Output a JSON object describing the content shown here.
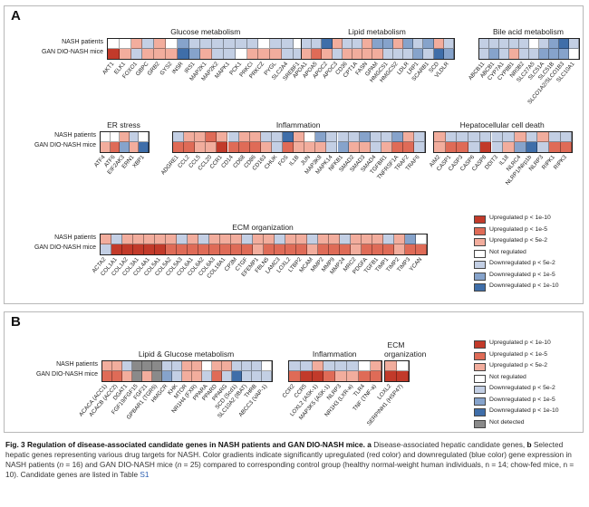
{
  "figure": {
    "panels": [
      {
        "id": "a",
        "label": "A",
        "row_labels": [
          "NASH patients",
          "GAN DIO-NASH mice"
        ],
        "groups": [
          {
            "title": "Glucose metabolism",
            "genes": [
              "AKT1",
              "ELK1",
              "FOXO1",
              "GBPC",
              "GRB2",
              "GYS2",
              "INSR",
              "IRS1",
              "MAP2K1",
              "MAP2K2",
              "MAPK1",
              "PCK1",
              "PRKCI",
              "PRKCZ",
              "PYGL",
              "SLC2A4",
              "SREBF1"
            ],
            "rows": [
              [
                0,
                0,
                1,
                -1,
                1,
                0,
                -2,
                -1,
                -1,
                -1,
                -1,
                -1,
                -1,
                0,
                -1,
                -1,
                0
              ],
              [
                3,
                1,
                -1,
                1,
                1,
                1,
                -3,
                -2,
                1,
                -1,
                -1,
                0,
                1,
                1,
                1,
                -1,
                -1
              ]
            ]
          },
          {
            "title": "Lipid metabolism",
            "genes": [
              "APOA1",
              "APOA5",
              "APOC2",
              "APOC3",
              "CD36",
              "CPT1A",
              "FASN",
              "GPAM",
              "HMGCS1",
              "HMGCS2",
              "LDLR",
              "LRP1",
              "SCARB1",
              "SCD",
              "VLDLR"
            ],
            "rows": [
              [
                -1,
                -1,
                -3,
                1,
                -1,
                -1,
                1,
                -2,
                -2,
                1,
                -2,
                -1,
                -2,
                1,
                -1
              ],
              [
                1,
                2,
                1,
                -1,
                1,
                1,
                1,
                1,
                -1,
                -1,
                -1,
                -2,
                -1,
                -3,
                -2
              ]
            ]
          },
          {
            "title": "Bile acid metabolism",
            "genes": [
              "ABCB11",
              "ABCB1",
              "CYP7A1",
              "CYP8B1",
              "NR0B2",
              "SLC27A5",
              "SLC51A",
              "SLC51B",
              "SLCO1A2/SLCO1B3",
              "SLC10A1"
            ],
            "rows": [
              [
                -1,
                -1,
                -1,
                -1,
                -1,
                0,
                -1,
                -2,
                -3,
                -1
              ],
              [
                -1,
                -2,
                -1,
                1,
                -1,
                -1,
                -2,
                -2,
                -2,
                0
              ]
            ]
          },
          {
            "title": "ER stress",
            "genes": [
              "ATF4",
              "ATF6",
              "EIF2AK3",
              "ERN1",
              "XBP1"
            ],
            "rows": [
              [
                0,
                0,
                1,
                -1,
                0
              ],
              [
                1,
                2,
                -2,
                1,
                -3
              ]
            ]
          },
          {
            "title": "Inflammation",
            "genes": [
              "ADGRE1",
              "CCL2",
              "CCL5",
              "CCL20",
              "CCR1",
              "CD14",
              "CD68",
              "CD86",
              "CD163",
              "CHUK",
              "FOS",
              "IL1B",
              "JUN",
              "MAP3K8",
              "MAPK14",
              "NFKB1",
              "SMAD2",
              "SMAD3",
              "SMAD4",
              "TGFBR1",
              "TNFRSF1A",
              "TRAF2",
              "TRAF6"
            ],
            "rows": [
              [
                -1,
                1,
                1,
                2,
                1,
                -1,
                1,
                1,
                -1,
                -1,
                -3,
                1,
                0,
                -2,
                -1,
                -1,
                -1,
                -2,
                -1,
                -1,
                -2,
                1,
                -1
              ],
              [
                2,
                2,
                1,
                1,
                3,
                2,
                2,
                2,
                1,
                -1,
                2,
                1,
                1,
                1,
                -1,
                -2,
                1,
                1,
                -1,
                1,
                2,
                2,
                -1
              ]
            ]
          },
          {
            "title": "Hepatocellular cell death",
            "genes": [
              "AIM2",
              "CASP1",
              "CASP3",
              "CASP6",
              "CASP8",
              "DDIT3",
              "IL18",
              "NLRC4",
              "NLRP1/Nlrp1b",
              "NLRP3",
              "RIPK1",
              "RIPK3"
            ],
            "rows": [
              [
                1,
                -1,
                -1,
                -1,
                -1,
                -1,
                -1,
                1,
                -1,
                1,
                -1,
                -1
              ],
              [
                1,
                2,
                2,
                -1,
                3,
                -1,
                1,
                -2,
                -3,
                -1,
                2,
                2
              ]
            ]
          },
          {
            "title": "ECM organization",
            "genes": [
              "ACTA2",
              "COL1A1",
              "COL1A2",
              "COL3A1",
              "COL4A1",
              "COL5A1",
              "COL5A2",
              "COL5A3",
              "COL6A1",
              "COL6A2",
              "COL6A3",
              "COL18A1",
              "CP3M",
              "CTGF",
              "EFEMP1",
              "FBLN5",
              "LAMC3",
              "LOXL2",
              "LTBP2",
              "MCAM",
              "MMP2",
              "MMP9",
              "MMP24",
              "MRC2",
              "PDGFA",
              "TGFB1",
              "TIMP1",
              "TIMP2",
              "TIMP3",
              "YCAN"
            ],
            "rows": [
              [
                1,
                -1,
                1,
                1,
                1,
                1,
                1,
                -1,
                1,
                -1,
                1,
                1,
                1,
                -1,
                1,
                1,
                -1,
                1,
                1,
                -1,
                1,
                1,
                -1,
                1,
                1,
                1,
                -1,
                1,
                -2,
                0
              ],
              [
                -1,
                3,
                3,
                3,
                3,
                3,
                2,
                2,
                2,
                2,
                2,
                2,
                2,
                2,
                1,
                2,
                2,
                2,
                2,
                1,
                2,
                2,
                2,
                1,
                2,
                2,
                2,
                1,
                2,
                2
              ]
            ]
          }
        ]
      },
      {
        "id": "b",
        "label": "B",
        "row_labels": [
          "NASH patients",
          "GAN DIO-NASH mice"
        ],
        "groups": [
          {
            "title": "Lipid & Glucose metabolism",
            "genes": [
              "ACACA (ACC1)",
              "ACACB (ACC2)",
              "DGAT1",
              "FGF19/FGF15",
              "FGF21",
              "GPBAR1 (TGR5)",
              "HMGCR",
              "KHK",
              "MTOR",
              "NR1H4 (FXR)",
              "PPARA",
              "PPARD",
              "PPARG",
              "SCD (Scd1)",
              "SLC10A2 (IBAT)",
              "THRB",
              "ABCC3 (VAP-1)"
            ],
            "rows": [
              [
                1,
                1,
                -1,
                -4,
                -4,
                -4,
                -1,
                -1,
                1,
                1,
                0,
                1,
                1,
                -1,
                -1,
                -1,
                0
              ],
              [
                2,
                2,
                1,
                -4,
                1,
                -4,
                -2,
                -1,
                1,
                1,
                -1,
                2,
                -1,
                -3,
                -1,
                -1,
                -1
              ]
            ]
          },
          {
            "title": "Inflammation",
            "genes": [
              "CCR2",
              "CCR5",
              "LOXL2 (ASK-1)",
              "MAP3K5 (ASK-1)",
              "NLRP3",
              "NR1H3 (LXR-a)",
              "TLR4",
              "TNF (TNF-a)"
            ],
            "rows": [
              [
                -1,
                -1,
                1,
                -1,
                -1,
                -1,
                0,
                1
              ],
              [
                2,
                3,
                3,
                2,
                1,
                1,
                2,
                2
              ]
            ]
          },
          {
            "title": "ECM\norganization",
            "genes": [
              "LOXL2",
              "SERPINH1 (HSP47)"
            ],
            "rows": [
              [
                1,
                0
              ],
              [
                3,
                3
              ]
            ]
          }
        ]
      }
    ],
    "legend_a": [
      {
        "label": "Upregulated p < 1e-10",
        "level": 3,
        "color": "#c23a2a"
      },
      {
        "label": "Upregulated p < 1e-5",
        "level": 2,
        "color": "#df6b57"
      },
      {
        "label": "Upregulated p < 5e-2",
        "level": 1,
        "color": "#f2ad9d"
      },
      {
        "label": "Not regulated",
        "level": 0,
        "color": "#ffffff"
      },
      {
        "label": "Downregulated p < 5e-2",
        "level": -1,
        "color": "#c3cfe4"
      },
      {
        "label": "Downregulated p < 1e-5",
        "level": -2,
        "color": "#86a3cb"
      },
      {
        "label": "Downregulated p < 1e-10",
        "level": -3,
        "color": "#3f6ea9"
      }
    ],
    "legend_b": [
      {
        "label": "Upregulated p < 1e-10",
        "level": 3,
        "color": "#c23a2a"
      },
      {
        "label": "Upregulated p < 1e-5",
        "level": 2,
        "color": "#df6b57"
      },
      {
        "label": "Upregulated p < 5e-2",
        "level": 1,
        "color": "#f2ad9d"
      },
      {
        "label": "Not regulated",
        "level": 0,
        "color": "#ffffff"
      },
      {
        "label": "Downregulated p < 5e-2",
        "level": -1,
        "color": "#c3cfe4"
      },
      {
        "label": "Downregulated p < 1e-5",
        "level": -2,
        "color": "#86a3cb"
      },
      {
        "label": "Downregulated p < 1e-10",
        "level": -3,
        "color": "#3f6ea9"
      },
      {
        "label": "Not detected",
        "level": -4,
        "color": "#8a8a8a"
      }
    ],
    "caption": {
      "fig": "Fig. 3",
      "title": "Regulation of disease-associated candidate genes in NASH patients and GAN DIO-NASH mice.",
      "a": "a",
      "a_text": "Disease-associated hepatic candidate genes,",
      "b": "b",
      "b_text": "Selected hepatic genes representing various drug targets for NASH. Color gradients indicate significantly upregulated (red color) and downregulated (blue color) gene expression in NASH patients (",
      "n1": "n",
      "t1": " = 16) and GAN DIO-NASH mice (",
      "n2": "n",
      "t2": " = 25) compared to corresponding control group (healthy normal-weight human individuals, n = 14; chow-fed mice, n = 10). Candidate genes are listed in Table ",
      "table_ref": "S1"
    }
  }
}
